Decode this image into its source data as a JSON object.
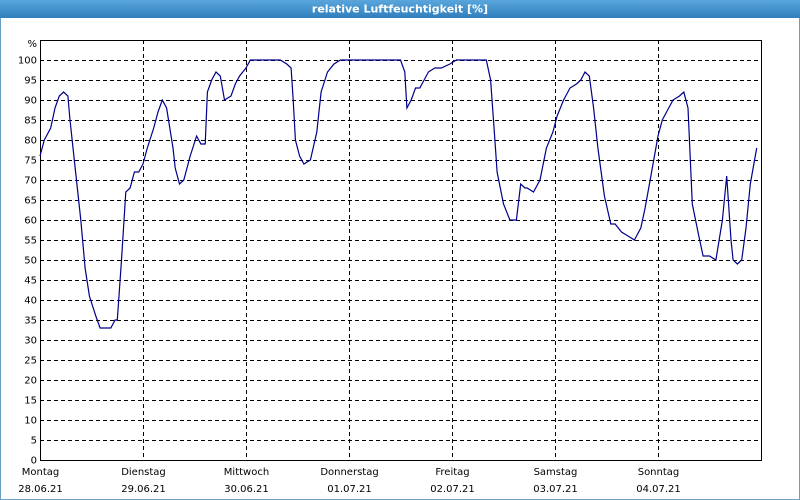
{
  "chart_data": {
    "type": "line",
    "title": "relative Luftfeuchtigkeit [%]",
    "y_unit": "%",
    "xlim": [
      0,
      168
    ],
    "ylim": [
      0,
      100
    ],
    "grid": true,
    "xticks": [
      {
        "value": 0,
        "label": "Montag"
      },
      {
        "value": 24,
        "label": "Dienstag"
      },
      {
        "value": 48,
        "label": "Mittwoch"
      },
      {
        "value": 72,
        "label": "Donnerstag"
      },
      {
        "value": 96,
        "label": "Freitag"
      },
      {
        "value": 120,
        "label": "Samstag"
      },
      {
        "value": 144,
        "label": "Sonntag"
      }
    ],
    "xtick_dates": [
      "28.06.21",
      "29.06.21",
      "30.06.21",
      "01.07.21",
      "02.07.21",
      "03.07.21",
      "04.07.21"
    ],
    "yticks": [
      0,
      5,
      10,
      15,
      20,
      25,
      30,
      35,
      40,
      45,
      50,
      55,
      60,
      65,
      70,
      75,
      80,
      85,
      90,
      95,
      100
    ],
    "x": [
      0,
      1,
      2.5,
      3.5,
      4.5,
      5.5,
      6.5,
      7,
      8,
      9.5,
      10.5,
      11.5,
      13,
      14,
      15,
      16.5,
      17.5,
      18,
      19,
      20,
      21,
      22,
      23,
      24,
      25,
      26.5,
      27.5,
      28.5,
      29.5,
      31,
      31.5,
      32.5,
      33.5,
      35,
      36.5,
      37.5,
      38.5,
      39,
      40,
      41,
      42,
      43,
      44.5,
      45.5,
      46.5,
      48,
      49,
      51.5,
      56,
      57.5,
      58.5,
      59,
      59.5,
      60.5,
      61.5,
      63,
      64.5,
      65.5,
      67,
      68.5,
      70,
      84,
      85,
      85.5,
      86.5,
      87.5,
      88.5,
      89.5,
      90.5,
      92,
      93.5,
      95.5,
      97,
      104,
      105,
      106,
      106.5,
      108,
      109.5,
      111,
      112,
      113,
      113.5,
      115,
      116.5,
      118,
      119.5,
      120.5,
      122,
      123.5,
      125,
      126,
      127,
      128,
      129,
      130,
      131.5,
      133,
      134,
      135.5,
      137,
      138.5,
      140,
      141,
      142.5,
      144,
      145,
      146.5,
      147.5,
      149,
      150,
      151,
      152,
      153.5,
      154.5,
      156,
      157.5,
      159,
      160,
      161,
      161.5,
      162.5,
      163.5,
      164.5,
      165.5,
      167
    ],
    "series": [
      {
        "color": "#00008b",
        "values": [
          76,
          80,
          83,
          88,
          91,
          92,
          91,
          85,
          75,
          60,
          48,
          41,
          36,
          33,
          33,
          33,
          35,
          35,
          50,
          67,
          68,
          72,
          72,
          74,
          78,
          83,
          87,
          90,
          88,
          78,
          73,
          69,
          70,
          76,
          81,
          79,
          79,
          92,
          95,
          97,
          96,
          90,
          91,
          94,
          96,
          98,
          100,
          100,
          100,
          99,
          98,
          90,
          80,
          76,
          74,
          75,
          82,
          92,
          97,
          99,
          100,
          100,
          97,
          88,
          90,
          93,
          93,
          95,
          97,
          98,
          98,
          99,
          100,
          100,
          95,
          80,
          72,
          64,
          60,
          60,
          69,
          68,
          68,
          67,
          70,
          78,
          82,
          86,
          90,
          93,
          94,
          95,
          97,
          96,
          88,
          78,
          66,
          59,
          59,
          57,
          56,
          55,
          58,
          63,
          72,
          81,
          85,
          88,
          90,
          91,
          92,
          88,
          64,
          56,
          51,
          51,
          50,
          60,
          71,
          55,
          50,
          49,
          50,
          58,
          69,
          78
        ]
      }
    ]
  }
}
